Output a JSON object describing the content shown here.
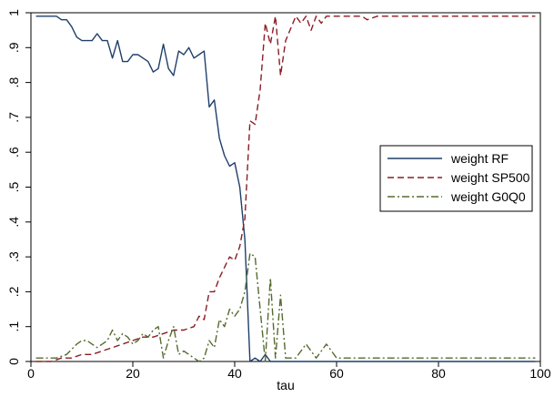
{
  "chart_data": {
    "type": "line",
    "title": "",
    "xlabel": "tau",
    "ylabel": "",
    "xlim": [
      0,
      100
    ],
    "ylim": [
      0,
      1.0
    ],
    "x_ticks": [
      0,
      20,
      40,
      60,
      80,
      100
    ],
    "y_ticks": [
      0,
      0.1,
      0.2,
      0.3,
      0.4,
      0.5,
      0.6,
      0.7,
      0.8,
      0.9,
      1.0
    ],
    "x_tick_labels": [
      "0",
      "20",
      "40",
      "60",
      "80",
      "100"
    ],
    "y_tick_labels": [
      "0",
      ".1",
      ".2",
      ".3",
      ".4",
      ".5",
      ".6",
      ".7",
      ".8",
      ".9",
      "1"
    ],
    "grid": false,
    "legend_position": "right",
    "series": [
      {
        "name": "weight RF",
        "color": "#1f3f6a",
        "dash": "solid",
        "x": [
          1,
          2,
          3,
          4,
          5,
          6,
          7,
          8,
          9,
          10,
          11,
          12,
          13,
          14,
          15,
          16,
          17,
          18,
          19,
          20,
          21,
          22,
          23,
          24,
          25,
          26,
          27,
          28,
          29,
          30,
          31,
          32,
          33,
          34,
          35,
          36,
          37,
          38,
          39,
          40,
          41,
          42,
          43,
          44,
          45,
          46,
          47,
          48,
          49,
          50,
          52,
          55,
          60,
          70,
          80,
          90,
          99
        ],
        "values": [
          0.99,
          0.99,
          0.99,
          0.99,
          0.99,
          0.98,
          0.98,
          0.96,
          0.93,
          0.92,
          0.92,
          0.92,
          0.94,
          0.92,
          0.92,
          0.87,
          0.92,
          0.86,
          0.86,
          0.88,
          0.88,
          0.87,
          0.86,
          0.83,
          0.84,
          0.91,
          0.84,
          0.82,
          0.89,
          0.88,
          0.9,
          0.87,
          0.88,
          0.89,
          0.73,
          0.75,
          0.64,
          0.59,
          0.56,
          0.57,
          0.5,
          0.35,
          0.0,
          0.01,
          0.0,
          0.02,
          0.0,
          0.0,
          0.0,
          0.0,
          0.0,
          0.0,
          0.0,
          0.0,
          0.0,
          0.0,
          0.0
        ]
      },
      {
        "name": "weight SP500",
        "color": "#8b1c24",
        "dash": "dashed",
        "x": [
          1,
          4,
          6,
          8,
          10,
          12,
          14,
          16,
          18,
          20,
          22,
          24,
          26,
          28,
          30,
          32,
          33,
          34,
          35,
          36,
          37,
          38,
          39,
          40,
          41,
          42,
          43,
          44,
          45,
          46,
          47,
          48,
          49,
          50,
          52,
          53,
          54,
          55,
          56,
          57,
          58,
          60,
          65,
          66,
          68,
          69,
          70,
          75,
          80,
          90,
          99
        ],
        "values": [
          0.0,
          0.0,
          0.01,
          0.01,
          0.02,
          0.02,
          0.03,
          0.04,
          0.05,
          0.06,
          0.07,
          0.07,
          0.08,
          0.09,
          0.09,
          0.1,
          0.13,
          0.12,
          0.2,
          0.2,
          0.24,
          0.27,
          0.3,
          0.29,
          0.33,
          0.41,
          0.69,
          0.68,
          0.78,
          0.97,
          0.91,
          0.99,
          0.82,
          0.92,
          0.99,
          0.97,
          0.99,
          0.95,
          0.99,
          0.97,
          0.99,
          0.99,
          0.99,
          0.98,
          0.99,
          0.99,
          0.99,
          0.99,
          0.99,
          0.99,
          0.99
        ]
      },
      {
        "name": "weight G0Q0",
        "color": "#556b2f",
        "dash": "dashdot",
        "x": [
          1,
          5,
          7,
          9,
          10,
          11,
          12,
          13,
          14,
          15,
          16,
          17,
          18,
          19,
          20,
          21,
          22,
          23,
          24,
          25,
          26,
          27,
          28,
          29,
          30,
          31,
          32,
          33,
          34,
          35,
          36,
          37,
          38,
          39,
          40,
          41,
          42,
          43,
          44,
          45,
          46,
          47,
          48,
          49,
          50,
          52,
          54,
          56,
          58,
          60,
          65,
          70,
          80,
          90,
          99
        ],
        "values": [
          0.01,
          0.01,
          0.02,
          0.05,
          0.06,
          0.06,
          0.05,
          0.04,
          0.05,
          0.06,
          0.09,
          0.06,
          0.08,
          0.07,
          0.05,
          0.06,
          0.08,
          0.07,
          0.09,
          0.1,
          0.01,
          0.06,
          0.1,
          0.02,
          0.03,
          0.02,
          0.01,
          0.0,
          0.01,
          0.06,
          0.04,
          0.12,
          0.1,
          0.15,
          0.13,
          0.15,
          0.2,
          0.31,
          0.3,
          0.15,
          0.0,
          0.24,
          0.01,
          0.19,
          0.01,
          0.01,
          0.05,
          0.01,
          0.05,
          0.01,
          0.01,
          0.01,
          0.01,
          0.01,
          0.01
        ]
      }
    ]
  }
}
